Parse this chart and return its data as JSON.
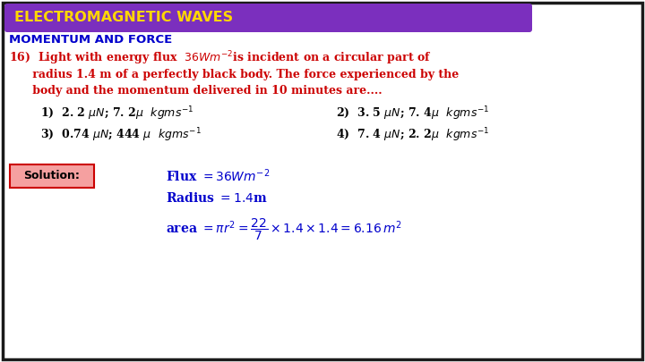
{
  "title": "ELECTROMAGNETIC WAVES",
  "title_bg": "#7B2FBE",
  "title_color": "#FFD700",
  "subtitle": "MOMENTUM AND FORCE",
  "subtitle_color": "#0000CC",
  "question_color": "#CC0000",
  "options_color": "#000000",
  "solution_label": "Solution:",
  "solution_color": "#0000CC",
  "solution_box_facecolor": "#F5A0A0",
  "solution_box_edgecolor": "#CC0000",
  "bg_color": "#FFFFFF",
  "border_color": "#1A1A1A",
  "fig_width": 7.2,
  "fig_height": 4.05,
  "dpi": 100
}
